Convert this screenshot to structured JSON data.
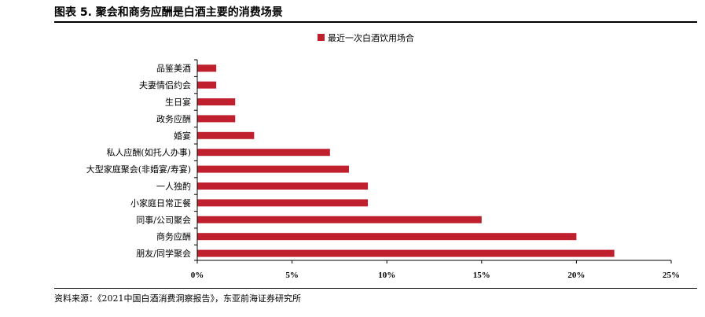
{
  "header": {
    "title": "图表 5.  聚会和商务应酬是白酒主要的消费场景"
  },
  "source": "资料来源：《2021中国白酒消费洞察报告》，东亚前海证券研究所",
  "colors": {
    "bar": "#C0202E",
    "axis": "#000000"
  },
  "chart_data": {
    "type": "bar",
    "orientation": "horizontal",
    "categories": [
      "品鉴美酒",
      "夫妻情侣约会",
      "生日宴",
      "政务应酬",
      "婚宴",
      "私人应酬(如托人办事)",
      "大型家庭聚会(非婚宴/寿宴)",
      "一人独酌",
      "小家庭日常正餐",
      "同事/公司聚会",
      "商务应酬",
      "朋友/同学聚会"
    ],
    "series": [
      {
        "name": "最近一次白酒饮用场合",
        "values": [
          1,
          1,
          2,
          2,
          3,
          7,
          8,
          9,
          9,
          15,
          20,
          22
        ]
      }
    ],
    "xlim": [
      0,
      25
    ],
    "xticks": [
      "0%",
      "5%",
      "10%",
      "15%",
      "20%",
      "25%"
    ],
    "legend_position": "top",
    "grid": false
  }
}
